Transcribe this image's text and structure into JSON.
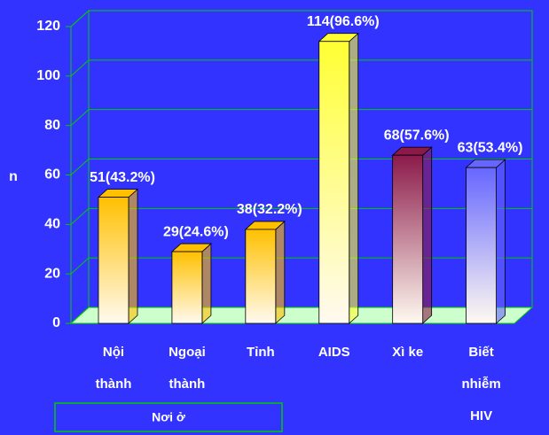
{
  "chart_data": {
    "type": "bar3d",
    "y_label": "n",
    "categories": [
      [
        "Nội",
        "thành"
      ],
      [
        "Ngoại",
        "thành"
      ],
      [
        "Tỉnh"
      ],
      [
        "AIDS"
      ],
      [
        "Xì ke"
      ],
      [
        "Biết",
        "nhiễm",
        "HIV"
      ]
    ],
    "values": [
      51,
      29,
      38,
      114,
      68,
      63
    ],
    "value_labels": [
      "51(43.2%)",
      "29(24.6%)",
      "38(32.2%)",
      "114(96.6%)",
      "68(57.6%)",
      "63(53.4%)"
    ],
    "colors": [
      "#ffc000",
      "#ffc000",
      "#ffc000",
      "#ffff33",
      "#8b1a4a",
      "#6666ff"
    ],
    "group_label": "Nơi ở",
    "ylim": [
      0,
      120
    ],
    "yticks": [
      0,
      20,
      40,
      60,
      80,
      100,
      120
    ],
    "grid": true
  }
}
